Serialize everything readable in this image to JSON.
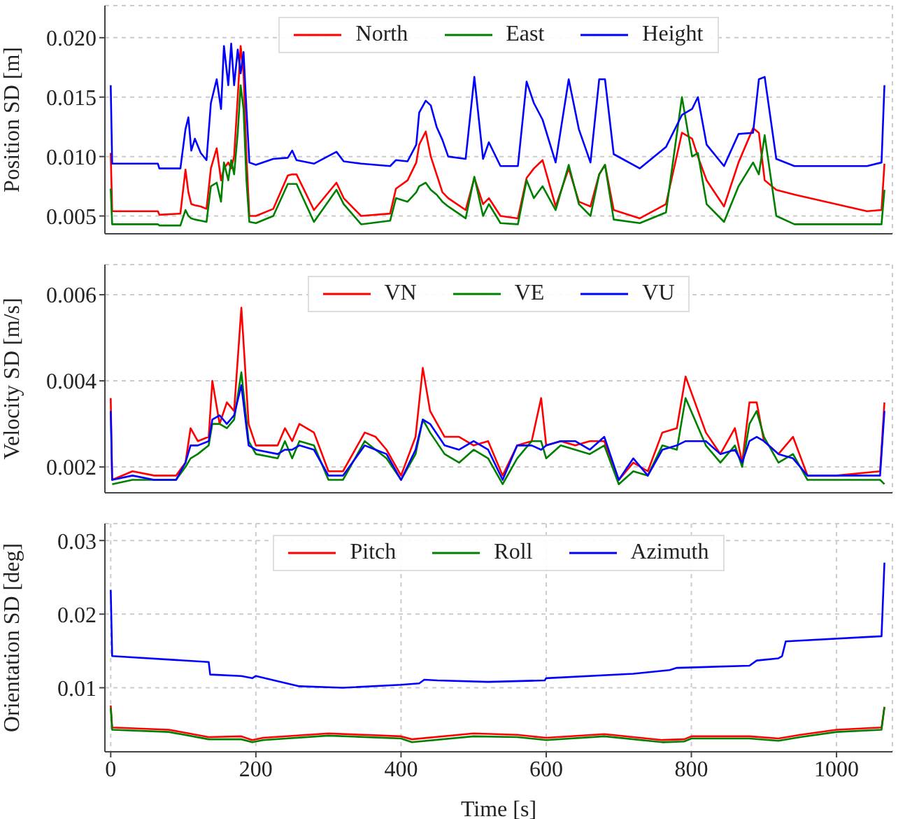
{
  "chart_data": [
    {
      "type": "line",
      "ylabel": "Position SD [m]",
      "xlim": [
        -8,
        1077
      ],
      "xticks": [
        0,
        200,
        400,
        600,
        800,
        1000
      ],
      "ylim": [
        0.0035,
        0.0227
      ],
      "yticks": [
        0.005,
        {
          "value": 0.01,
          "label": "0.010"
        },
        0.015,
        {
          "value": 0.02,
          "label": "0.020"
        }
      ],
      "grid": true,
      "legend": "top",
      "tick_labels": "y",
      "x": [
        0,
        2,
        65,
        67,
        96,
        103,
        107,
        111,
        116,
        124,
        132,
        138,
        146,
        152,
        156,
        162,
        166,
        170,
        175,
        179,
        183,
        187,
        191,
        200,
        224,
        244,
        250,
        256,
        280,
        311,
        321,
        345,
        385,
        393,
        409,
        421,
        425,
        434,
        441,
        449,
        457,
        465,
        489,
        501,
        513,
        521,
        537,
        561,
        573,
        583,
        595,
        613,
        631,
        645,
        661,
        673,
        681,
        693,
        729,
        765,
        787,
        801,
        809,
        821,
        845,
        865,
        885,
        893,
        901,
        917,
        942,
        1042,
        1062,
        1066
      ],
      "series": [
        {
          "name": "North",
          "color": "#ff0000",
          "values": [
            0.0103,
            0.0054,
            0.0054,
            0.0051,
            0.0052,
            0.0089,
            0.007,
            0.006,
            0.0059,
            0.0058,
            0.0056,
            0.009,
            0.0107,
            0.008,
            0.009,
            0.0095,
            0.009,
            0.01,
            0.015,
            0.0193,
            0.017,
            0.01,
            0.005,
            0.005,
            0.0056,
            0.0084,
            0.0085,
            0.0085,
            0.0055,
            0.0078,
            0.0065,
            0.005,
            0.0052,
            0.0073,
            0.008,
            0.0095,
            0.011,
            0.0121,
            0.01,
            0.0085,
            0.007,
            0.0065,
            0.0055,
            0.0082,
            0.006,
            0.0065,
            0.005,
            0.0048,
            0.0082,
            0.009,
            0.0097,
            0.0058,
            0.009,
            0.0062,
            0.0058,
            0.0085,
            0.0093,
            0.0055,
            0.0048,
            0.006,
            0.012,
            0.0115,
            0.01,
            0.008,
            0.0058,
            0.0095,
            0.0124,
            0.012,
            0.008,
            0.0072,
            0.0068,
            0.0054,
            0.0055,
            0.0094
          ]
        },
        {
          "name": "East",
          "color": "#008000",
          "values": [
            0.0073,
            0.0043,
            0.0043,
            0.0042,
            0.0042,
            0.0055,
            0.005,
            0.0048,
            0.0047,
            0.0046,
            0.0045,
            0.0075,
            0.0078,
            0.0062,
            0.0095,
            0.008,
            0.0097,
            0.0085,
            0.012,
            0.016,
            0.014,
            0.008,
            0.0045,
            0.0044,
            0.005,
            0.0077,
            0.0077,
            0.0077,
            0.0045,
            0.0072,
            0.006,
            0.0043,
            0.0046,
            0.0065,
            0.0062,
            0.007,
            0.0075,
            0.0078,
            0.0072,
            0.0068,
            0.0062,
            0.0058,
            0.0048,
            0.0083,
            0.005,
            0.006,
            0.0044,
            0.0043,
            0.008,
            0.0065,
            0.0075,
            0.0055,
            0.0093,
            0.006,
            0.005,
            0.0085,
            0.0093,
            0.0047,
            0.0044,
            0.0053,
            0.015,
            0.01,
            0.0103,
            0.006,
            0.0045,
            0.0075,
            0.0095,
            0.0085,
            0.0118,
            0.005,
            0.0043,
            0.0043,
            0.0043,
            0.0072
          ]
        },
        {
          "name": "Height",
          "color": "#0000ff",
          "values": [
            0.016,
            0.0094,
            0.0094,
            0.009,
            0.009,
            0.0123,
            0.0133,
            0.0105,
            0.0115,
            0.0103,
            0.0097,
            0.0145,
            0.0165,
            0.014,
            0.0193,
            0.016,
            0.0195,
            0.016,
            0.019,
            0.017,
            0.0188,
            0.014,
            0.0095,
            0.0093,
            0.0098,
            0.0099,
            0.0105,
            0.0097,
            0.0094,
            0.0104,
            0.0096,
            0.0094,
            0.0092,
            0.0097,
            0.0096,
            0.011,
            0.0137,
            0.0147,
            0.0143,
            0.0125,
            0.0114,
            0.01,
            0.0098,
            0.0167,
            0.0098,
            0.0112,
            0.0092,
            0.0092,
            0.0163,
            0.0145,
            0.0131,
            0.0095,
            0.0165,
            0.0123,
            0.0095,
            0.0165,
            0.0165,
            0.0102,
            0.009,
            0.0108,
            0.0135,
            0.014,
            0.015,
            0.011,
            0.0092,
            0.0119,
            0.012,
            0.0165,
            0.0167,
            0.0098,
            0.0092,
            0.0092,
            0.0095,
            0.016
          ]
        }
      ]
    },
    {
      "type": "line",
      "ylabel": "Velocity SD [m/s]",
      "xlim": [
        -8,
        1077
      ],
      "xticks": [
        0,
        200,
        400,
        600,
        800,
        1000
      ],
      "ylim": [
        0.0014,
        0.0067
      ],
      "yticks": [
        0.002,
        0.004,
        0.006
      ],
      "grid": true,
      "legend": "top",
      "tick_labels": "y",
      "x": [
        0,
        2,
        30,
        60,
        90,
        103,
        110,
        120,
        135,
        140,
        150,
        160,
        170,
        180,
        190,
        200,
        230,
        240,
        250,
        260,
        280,
        300,
        320,
        350,
        365,
        380,
        400,
        420,
        430,
        440,
        460,
        480,
        500,
        520,
        540,
        560,
        580,
        593,
        600,
        620,
        640,
        660,
        680,
        700,
        720,
        740,
        760,
        780,
        792,
        820,
        840,
        860,
        870,
        880,
        890,
        900,
        920,
        940,
        960,
        1000,
        1060,
        1066
      ],
      "series": [
        {
          "name": "VN",
          "color": "#ff0000",
          "values": [
            0.0036,
            0.0017,
            0.0019,
            0.0018,
            0.0018,
            0.0021,
            0.0029,
            0.0026,
            0.0027,
            0.004,
            0.003,
            0.0035,
            0.0033,
            0.0057,
            0.003,
            0.0025,
            0.0025,
            0.0029,
            0.0026,
            0.003,
            0.0028,
            0.0019,
            0.0019,
            0.0028,
            0.0027,
            0.0024,
            0.0018,
            0.0027,
            0.0043,
            0.0033,
            0.0027,
            0.0027,
            0.0025,
            0.0026,
            0.0018,
            0.0025,
            0.0026,
            0.0036,
            0.0025,
            0.0026,
            0.0025,
            0.0026,
            0.0026,
            0.0017,
            0.0021,
            0.0019,
            0.0028,
            0.0029,
            0.0041,
            0.0028,
            0.0023,
            0.0029,
            0.0021,
            0.0035,
            0.0035,
            0.0026,
            0.0023,
            0.0027,
            0.0018,
            0.0018,
            0.0019,
            0.0035
          ]
        },
        {
          "name": "VE",
          "color": "#008000",
          "values": [
            null,
            0.0016,
            0.0017,
            0.0017,
            0.0017,
            0.002,
            0.0022,
            0.0023,
            0.0025,
            0.003,
            0.003,
            0.0029,
            0.0031,
            0.0042,
            0.0026,
            0.0023,
            0.0022,
            0.0026,
            0.0022,
            0.0026,
            0.0025,
            0.0017,
            0.0017,
            0.0026,
            0.0024,
            0.0022,
            0.0017,
            0.0023,
            0.0031,
            0.0028,
            0.0023,
            0.0021,
            0.0024,
            0.0022,
            0.0016,
            0.0022,
            0.0026,
            0.0026,
            0.0022,
            0.0025,
            0.0024,
            0.0023,
            0.0025,
            0.0016,
            0.0019,
            0.0018,
            0.0025,
            0.0024,
            0.0036,
            0.0025,
            0.0021,
            0.0025,
            0.002,
            0.003,
            0.0033,
            0.0027,
            0.0021,
            0.0023,
            0.0017,
            0.0017,
            0.0017,
            0.0016
          ]
        },
        {
          "name": "VU",
          "color": "#0000ff",
          "values": [
            0.0033,
            0.0017,
            0.0018,
            0.0017,
            0.0017,
            0.0021,
            0.0025,
            0.0025,
            0.0026,
            0.0031,
            0.0032,
            0.003,
            0.0032,
            0.0039,
            0.0025,
            0.0024,
            0.0023,
            0.0024,
            0.0024,
            0.0025,
            0.0024,
            0.0018,
            0.0018,
            0.0025,
            0.0024,
            0.0023,
            0.0017,
            0.0024,
            0.0031,
            0.003,
            0.0025,
            0.0024,
            0.0026,
            0.0024,
            0.0017,
            0.0025,
            0.0025,
            0.0024,
            0.0025,
            0.0026,
            0.0026,
            0.0024,
            0.0027,
            0.0017,
            0.0022,
            0.0018,
            0.0024,
            0.0025,
            0.0026,
            0.0026,
            0.0023,
            0.0024,
            0.0021,
            0.0026,
            0.0027,
            0.0026,
            0.0023,
            0.0022,
            0.0018,
            0.0018,
            0.0018,
            0.0033
          ]
        }
      ]
    },
    {
      "type": "line",
      "ylabel": "Orientation SD [deg]",
      "xlabel": "Time [s]",
      "xlim": [
        -8,
        1077
      ],
      "xticks": [
        0,
        200,
        400,
        600,
        800,
        1000
      ],
      "ylim": [
        0.0013,
        0.0323
      ],
      "yticks": [
        0.01,
        0.02,
        0.03
      ],
      "grid": true,
      "legend": "top",
      "x": [
        0,
        2,
        80,
        135,
        180,
        195,
        210,
        300,
        400,
        415,
        500,
        560,
        600,
        680,
        760,
        790,
        800,
        880,
        920,
        950,
        1000,
        1062,
        1066
      ],
      "series": [
        {
          "name": "Pitch",
          "color": "#ff0000",
          "values": [
            0.0076,
            0.0046,
            0.0043,
            0.0033,
            0.0034,
            0.0029,
            0.0032,
            0.0038,
            0.0034,
            0.003,
            0.0038,
            0.0036,
            0.0032,
            0.0037,
            0.0029,
            0.003,
            0.0034,
            0.0034,
            0.0031,
            0.0036,
            0.0043,
            0.0046,
            0.0074
          ]
        },
        {
          "name": "Roll",
          "color": "#008000",
          "values": [
            0.0073,
            0.0043,
            0.004,
            0.003,
            0.003,
            0.0026,
            0.0029,
            0.0035,
            0.0031,
            0.0026,
            0.0034,
            0.0033,
            0.0029,
            0.0034,
            0.0026,
            0.0027,
            0.0031,
            0.0031,
            0.0028,
            0.0033,
            0.004,
            0.0043,
            0.0074
          ]
        },
        {
          "name": "Azimuth",
          "color": "#0000ff",
          "x": [
            0,
            2,
            135,
            137,
            180,
            195,
            200,
            260,
            320,
            400,
            425,
            432,
            450,
            520,
            598,
            600,
            720,
            770,
            780,
            880,
            890,
            920,
            925,
            930,
            1062,
            1066
          ],
          "values": [
            0.0233,
            0.0143,
            0.0135,
            0.0118,
            0.0116,
            0.0113,
            0.0116,
            0.0102,
            0.01,
            0.0104,
            0.0106,
            0.0111,
            0.011,
            0.0108,
            0.011,
            0.0113,
            0.0119,
            0.0124,
            0.0127,
            0.013,
            0.0137,
            0.014,
            0.0143,
            0.0163,
            0.017,
            0.027
          ]
        }
      ]
    }
  ]
}
